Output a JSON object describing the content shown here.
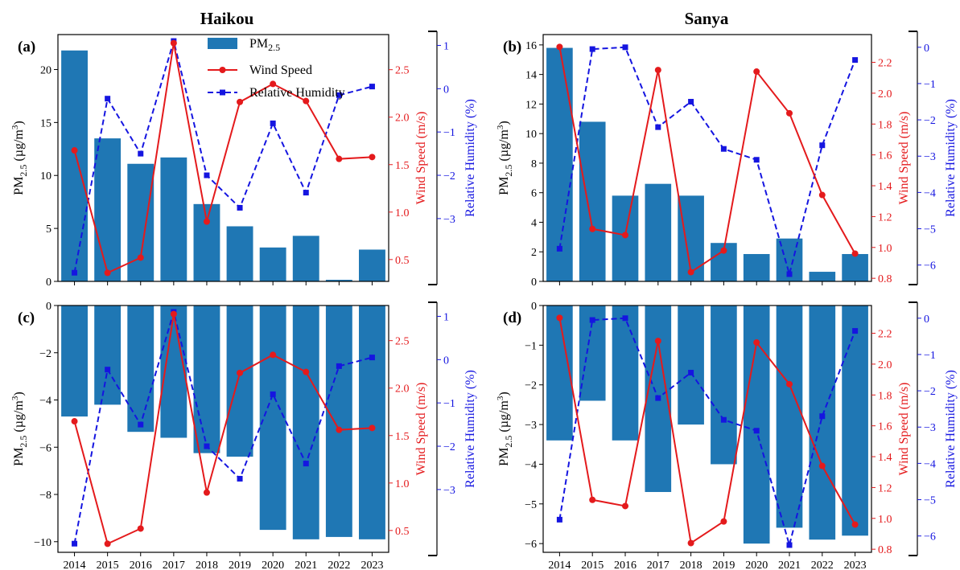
{
  "figure": {
    "column_titles": [
      "Haikou",
      "Sanya"
    ],
    "legend": {
      "pm_label": "PM",
      "pm_sub": "2.5",
      "wind_label": "Wind Speed",
      "rh_label": "Relative Humidity"
    },
    "colors": {
      "bar": "#1f77b4",
      "wind": "#e41a1c",
      "rh": "#1515e0"
    },
    "years": [
      "2014",
      "2015",
      "2016",
      "2017",
      "2018",
      "2019",
      "2020",
      "2021",
      "2022",
      "2023"
    ],
    "axis_labels": {
      "pm": "PM",
      "pm_sub": "2.5",
      "pm_unit": " (µg/m",
      "pm_unit_sup": "3",
      "pm_unit_close": ")",
      "wind": "Wind Speed (m/s)",
      "rh": "Relative Humidity (%)"
    }
  },
  "chart_data": [
    {
      "panel": "(a)",
      "title": "Haikou",
      "type": "bar+line",
      "pm": {
        "values": [
          21.8,
          13.5,
          11.1,
          11.7,
          7.3,
          5.2,
          3.2,
          4.3,
          0.15,
          3.0
        ],
        "ylim": [
          0,
          23.3
        ],
        "ticks": [
          0,
          5,
          10,
          15,
          20
        ]
      },
      "wind": {
        "values": [
          1.65,
          0.36,
          0.52,
          2.78,
          0.9,
          2.16,
          2.35,
          2.17,
          1.56,
          1.58
        ],
        "ylim": [
          0.27,
          2.87
        ],
        "ticks": [
          0.5,
          1.0,
          1.5,
          2.0,
          2.5
        ]
      },
      "rh": {
        "values": [
          -4.25,
          -0.23,
          -1.5,
          1.1,
          -2.0,
          -2.75,
          -0.8,
          -2.4,
          -0.15,
          0.05
        ],
        "ylim": [
          -4.45,
          1.25
        ],
        "ticks": [
          -3,
          -2,
          -1,
          0,
          1
        ]
      }
    },
    {
      "panel": "(b)",
      "title": "Sanya",
      "type": "bar+line",
      "pm": {
        "values": [
          15.8,
          10.8,
          5.8,
          6.6,
          5.8,
          2.6,
          1.85,
          2.9,
          0.65,
          1.85
        ],
        "ylim": [
          0,
          16.7
        ],
        "ticks": [
          0,
          2,
          4,
          6,
          8,
          10,
          12,
          14,
          16
        ]
      },
      "wind": {
        "values": [
          2.3,
          1.12,
          1.08,
          2.15,
          0.84,
          0.98,
          2.14,
          1.87,
          1.34,
          0.96
        ],
        "ylim": [
          0.78,
          2.38
        ],
        "ticks": [
          0.8,
          1.0,
          1.2,
          1.4,
          1.6,
          1.8,
          2.0,
          2.2
        ]
      },
      "rh": {
        "values": [
          -5.55,
          -0.05,
          0.0,
          -2.2,
          -1.5,
          -2.8,
          -3.1,
          -6.25,
          -2.7,
          -0.35
        ],
        "ylim": [
          -6.45,
          0.35
        ],
        "ticks": [
          -6,
          -5,
          -4,
          -3,
          -2,
          -1,
          0
        ]
      }
    },
    {
      "panel": "(c)",
      "title": "Haikou",
      "type": "bar+line",
      "pm": {
        "values": [
          -4.7,
          -4.2,
          -5.35,
          -5.6,
          -6.25,
          -6.4,
          -9.5,
          -9.9,
          -9.8,
          -9.9
        ],
        "ylim": [
          -10.45,
          0
        ],
        "ticks": [
          -10,
          -8,
          -6,
          -4,
          -2,
          0
        ]
      },
      "wind": {
        "values": [
          1.65,
          0.36,
          0.52,
          2.78,
          0.9,
          2.16,
          2.35,
          2.17,
          1.56,
          1.58
        ],
        "ylim": [
          0.27,
          2.87
        ],
        "ticks": [
          0.5,
          1.0,
          1.5,
          2.0,
          2.5
        ]
      },
      "rh": {
        "values": [
          -4.25,
          -0.23,
          -1.5,
          1.1,
          -2.0,
          -2.75,
          -0.8,
          -2.4,
          -0.15,
          0.05
        ],
        "ylim": [
          -4.45,
          1.25
        ],
        "ticks": [
          -3,
          -2,
          -1,
          0,
          1
        ]
      }
    },
    {
      "panel": "(d)",
      "title": "Sanya",
      "type": "bar+line",
      "pm": {
        "values": [
          -3.4,
          -2.4,
          -3.4,
          -4.7,
          -3.0,
          -4.0,
          -6.0,
          -5.6,
          -5.9,
          -5.8
        ],
        "ylim": [
          -6.22,
          0
        ],
        "ticks": [
          -6,
          -5,
          -4,
          -3,
          -2,
          -1,
          0
        ]
      },
      "wind": {
        "values": [
          2.3,
          1.12,
          1.08,
          2.15,
          0.84,
          0.98,
          2.14,
          1.87,
          1.34,
          0.96
        ],
        "ylim": [
          0.78,
          2.38
        ],
        "ticks": [
          0.8,
          1.0,
          1.2,
          1.4,
          1.6,
          1.8,
          2.0,
          2.2
        ]
      },
      "rh": {
        "values": [
          -5.55,
          -0.05,
          0.0,
          -2.2,
          -1.5,
          -2.8,
          -3.1,
          -6.25,
          -2.7,
          -0.35
        ],
        "ylim": [
          -6.45,
          0.35
        ],
        "ticks": [
          -6,
          -5,
          -4,
          -3,
          -2,
          -1,
          0
        ]
      }
    }
  ]
}
